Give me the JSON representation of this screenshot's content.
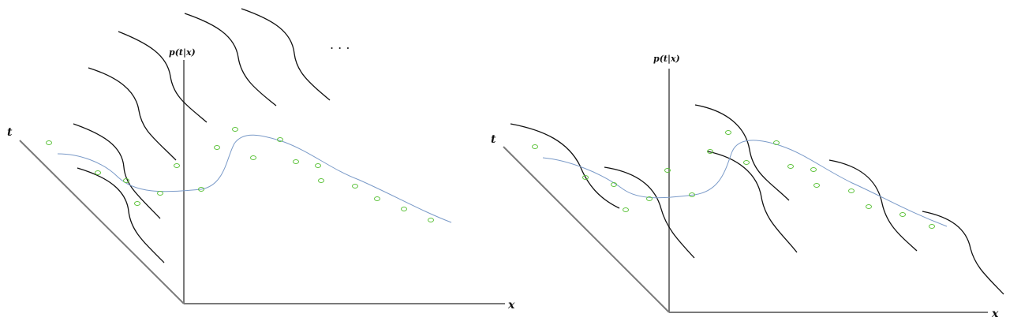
{
  "panels": [
    {
      "id": "left",
      "axis_labels": {
        "vertical": "p(t|x)",
        "depth": "t",
        "horizontal": "x"
      },
      "ellipsis": ". . ."
    },
    {
      "id": "right",
      "axis_labels": {
        "vertical": "p(t|x)",
        "depth": "t",
        "horizontal": "x"
      }
    }
  ],
  "colors": {
    "axis": "#7a7a7a",
    "density_curve": "#111111",
    "regression_curve": "#7a9ac8",
    "data_point": "#5cc23a"
  }
}
